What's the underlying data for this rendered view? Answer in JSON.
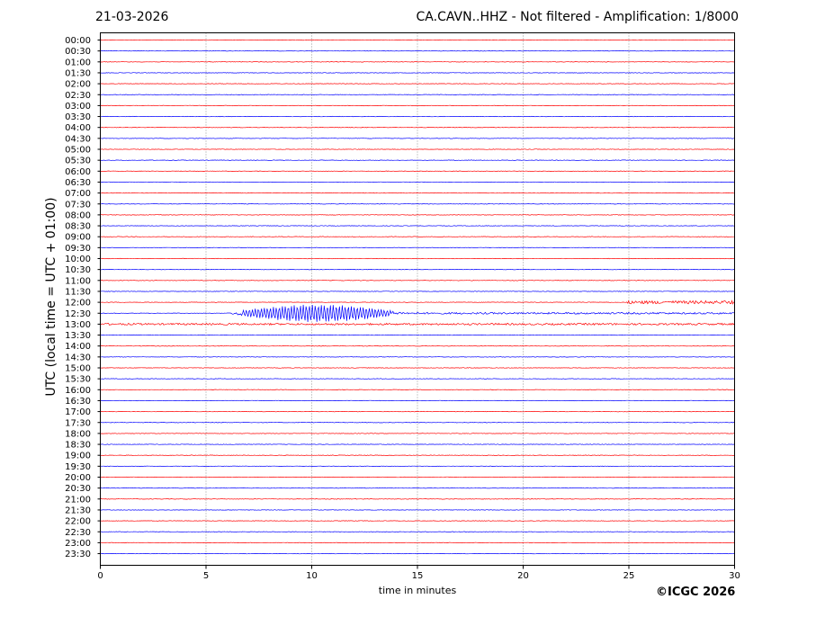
{
  "header": {
    "date": "21-03-2026",
    "title": "CA.CAVN..HHZ - Not filtered - Amplification: 1/8000"
  },
  "footer": {
    "copyright": "©ICGC 2026"
  },
  "chart_data": {
    "type": "line",
    "title": "CA.CAVN..HHZ - Not filtered - Amplification: 1/8000",
    "xlabel": "time in minutes",
    "ylabel": "UTC (local time = UTC + 01:00)",
    "xlim": [
      0,
      30
    ],
    "xticks": [
      0,
      5,
      10,
      15,
      20,
      25,
      30
    ],
    "grid": "vertical dotted lines at x ticks",
    "trace_colors": [
      "#ff0000",
      "#0000ff"
    ],
    "rows": [
      "00:00",
      "00:30",
      "01:00",
      "01:30",
      "02:00",
      "02:30",
      "03:00",
      "03:30",
      "04:00",
      "04:30",
      "05:00",
      "05:30",
      "06:00",
      "06:30",
      "07:00",
      "07:30",
      "08:00",
      "08:30",
      "09:00",
      "09:30",
      "10:00",
      "10:30",
      "11:00",
      "11:30",
      "12:00",
      "12:30",
      "13:00",
      "13:30",
      "14:00",
      "14:30",
      "15:00",
      "15:30",
      "16:00",
      "16:30",
      "17:00",
      "17:30",
      "18:00",
      "18:30",
      "19:00",
      "19:30",
      "20:00",
      "20:30",
      "21:00",
      "21:30",
      "22:00",
      "22:30",
      "23:00",
      "23:30"
    ],
    "events": [
      {
        "row": "12:30",
        "x_start": 6.2,
        "x_end": 15,
        "amplitude": "large",
        "note": "main oscillation burst"
      },
      {
        "row": "12:30",
        "x_start": 15,
        "x_end": 30,
        "amplitude": "small",
        "note": "coda"
      },
      {
        "row": "12:00",
        "x_start": 24.9,
        "x_end": 30,
        "amplitude": "medium"
      },
      {
        "row": "13:00",
        "x_start": 0,
        "x_end": 30,
        "amplitude": "small"
      },
      {
        "row": "10:00",
        "x_start": 3.9,
        "x_end": 4.0,
        "amplitude": "small"
      }
    ]
  }
}
